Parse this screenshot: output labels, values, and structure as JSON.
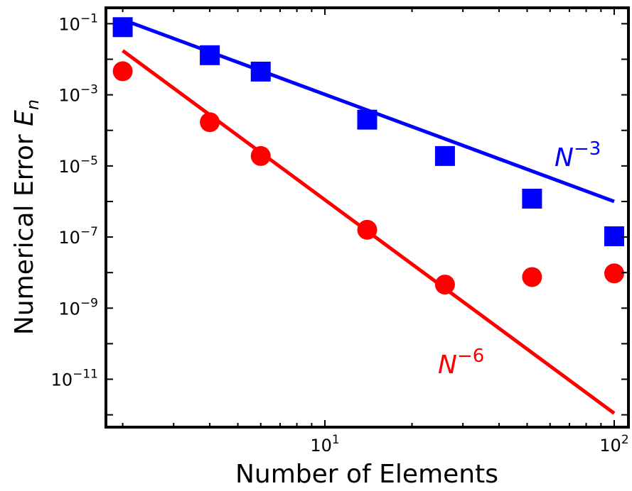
{
  "chart_data": {
    "type": "scatter",
    "title": "",
    "xlabel": "Number of Elements",
    "ylabel_main": "Numerical Error ",
    "ylabel_var": "E",
    "ylabel_sub": "n",
    "xscale": "log",
    "yscale": "log",
    "xlim": [
      1.75,
      112
    ],
    "ylim": [
      4.5e-13,
      0.28
    ],
    "grid": false,
    "x_ticks": [
      {
        "value": 10,
        "base": "10",
        "exp": "1"
      },
      {
        "value": 100,
        "base": "10",
        "exp": "2"
      }
    ],
    "y_ticks": [
      {
        "value": 0.1,
        "base": "10",
        "exp": "−1"
      },
      {
        "value": 0.001,
        "base": "10",
        "exp": "−3"
      },
      {
        "value": 1e-05,
        "base": "10",
        "exp": "−5"
      },
      {
        "value": 1e-07,
        "base": "10",
        "exp": "−7"
      },
      {
        "value": 1e-09,
        "base": "10",
        "exp": "−9"
      },
      {
        "value": 1e-11,
        "base": "10",
        "exp": "−11"
      }
    ],
    "series": [
      {
        "marker": "square",
        "color": "#0000ff",
        "x": [
          2,
          4,
          6,
          14,
          26,
          52,
          100
        ],
        "y": [
          0.08,
          0.013,
          0.0045,
          0.0002,
          1.9e-05,
          1.2e-06,
          1.05e-07
        ]
      },
      {
        "marker": "circle",
        "color": "#ff0000",
        "x": [
          2,
          4,
          6,
          14,
          26,
          52,
          100
        ],
        "y": [
          0.0046,
          0.00017,
          1.9e-05,
          1.6e-07,
          4.6e-09,
          7.5e-09,
          9.5e-09
        ]
      }
    ],
    "fits": [
      {
        "color": "#0000ff",
        "x": [
          2,
          100
        ],
        "y": [
          0.13,
          1e-06
        ],
        "label_base": "N",
        "label_exp": "−3"
      },
      {
        "color": "#ff0000",
        "x": [
          2,
          100
        ],
        "y": [
          0.0175,
          1.1e-12
        ],
        "label_base": "N",
        "label_exp": "−6"
      }
    ]
  }
}
